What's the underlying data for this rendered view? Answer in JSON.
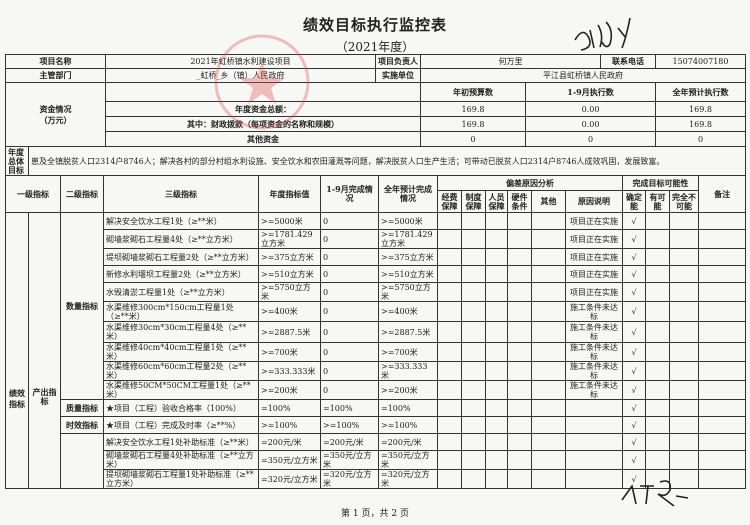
{
  "title": "绩效目标执行监控表",
  "subtitle": "（2021年度）",
  "project": {
    "name_label": "项目名称",
    "name": "2021年虹桥镇水利建设项目",
    "leader_label": "项目负责人",
    "leader": "何万里",
    "phone_label": "联系电话",
    "phone": "15074007180",
    "dept_label": "主管部门",
    "dept": "_虹桥_乡（镇）人民政府",
    "unit_label": "实施单位",
    "unit": "平江县虹桥镇人民政府"
  },
  "funds": {
    "label": "资金情况\n（万元）",
    "headers": [
      "年初预算数",
      "1-9月执行数",
      "全年预计执行数"
    ],
    "rows": [
      {
        "label": "年度资金总额：",
        "values": [
          "169.8",
          "0.00",
          "169.8"
        ]
      },
      {
        "label": "其中：财政拨款（每项资金的名称和规模）",
        "values": [
          "169.8",
          "0.00",
          "169.8"
        ]
      },
      {
        "label": "其他资金",
        "values": [
          "0",
          "0",
          "0"
        ]
      }
    ]
  },
  "goal": {
    "label": "年度总体目标",
    "text": "崽及全镇脱贫人口2314户8746人；解决各村的部分村组水利设施、安全饮水和农田灌溉等问题，解决脱贫人口生产生活；可带动已脱贫人口2314户8746人成效巩固，发展致富。"
  },
  "headers": {
    "level1": "一级指标",
    "level2": "二级指标",
    "level3": "三级指标",
    "target": "年度指标值",
    "actual": "1-9月完成情况",
    "forecast": "全年预计完成情况",
    "deviation": "偏差原因分析",
    "dev_cols": [
      "经费保障",
      "制度保障",
      "人员保障",
      "硬件条件",
      "其他",
      "原因说明"
    ],
    "possibility": "完成目标可能性",
    "poss_cols": [
      "确定能",
      "有可能",
      "完全不可能"
    ],
    "remark": "备注"
  },
  "level0": "绩效指标",
  "level1": "产出指标",
  "groups": [
    {
      "label": "数量指标",
      "span": 10
    },
    {
      "label": "质量指标",
      "span": 1
    },
    {
      "label": "时效指标",
      "span": 1
    },
    {
      "label": "",
      "span": 3
    }
  ],
  "rows": [
    {
      "name": "解决安全饮水工程1处（≥**米）",
      "target": ">=5000米",
      "actual": "0",
      "forecast": ">=5000米",
      "reason": "项目正在实施",
      "check": "√"
    },
    {
      "name": "砌墙浆砌石工程量4处（≥**立方米）",
      "target": ">=1781.429立方米",
      "actual": "0",
      "forecast": ">=1781.429立方米",
      "reason": "项目正在实施",
      "check": "√"
    },
    {
      "name": "堤坝砌墙浆砌石工程量2处（≥**立方米）",
      "target": ">=375立方米",
      "actual": "0",
      "forecast": ">=375立方米",
      "reason": "项目正在实施",
      "check": "√"
    },
    {
      "name": "新修水利堰坝工程量2处（≥**立方米）",
      "target": ">=510立方米",
      "actual": "0",
      "forecast": ">=510立方米",
      "reason": "项目正在实施",
      "check": "√"
    },
    {
      "name": "水毁清淤工程量1处（≥**立方米）",
      "target": ">=5750立方米",
      "actual": "0",
      "forecast": ">=5750立方米",
      "reason": "项目正在实施",
      "check": "√"
    },
    {
      "name": "水渠维修300cm*150cm工程量1处（≥**米）",
      "target": ">=400米",
      "actual": "0",
      "forecast": ">=400米",
      "reason": "施工条件未达标",
      "check": "√"
    },
    {
      "name": "水渠维修30cm*30cm工程量4处（≥**米）",
      "target": ">=2887.5米",
      "actual": "0",
      "forecast": ">=2887.5米",
      "reason": "施工条件未达标",
      "check": "√"
    },
    {
      "name": "水渠维修40cm*40cm工程量1处（≥**米）",
      "target": ">=700米",
      "actual": "0",
      "forecast": ">=700米",
      "reason": "施工条件未达标",
      "check": "√"
    },
    {
      "name": "水渠维修60cm*60cm工程量2处（≥**米）",
      "target": ">=333.333米",
      "actual": "0",
      "forecast": ">=333.333米",
      "reason": "施工条件未达标",
      "check": "√"
    },
    {
      "name": "水渠维修50CM*50CM工程量1处（≥**米）",
      "target": ">=200米",
      "actual": "0",
      "forecast": ">=200米",
      "reason": "施工条件未达标",
      "check": "√"
    },
    {
      "name": "★项目（工程）验收合格率（100%）",
      "target": "=100%",
      "actual": "=100%",
      "forecast": "=100%",
      "reason": "",
      "check": "√"
    },
    {
      "name": "★项目（工程）完成及时率（≥**%）",
      "target": ">=100%",
      "actual": ">=100%",
      "forecast": ">=100%",
      "reason": "",
      "check": "√"
    },
    {
      "name": "解决安全饮水工程1处补助标准（≥**米）",
      "target": "=200元/米",
      "actual": "=200元/米",
      "forecast": "=200元/米",
      "reason": "",
      "check": "√"
    },
    {
      "name": "砌墙浆砌石工程量4处补助标准（≥**立方米）",
      "target": "=350元/立方米",
      "actual": "=350元/立方米",
      "forecast": "=350元/立方米",
      "reason": "",
      "check": "√"
    },
    {
      "name": "提坝砌墙浆砌石工程量1处补助标准（≥**立方米）",
      "target": "=320元/立方米",
      "actual": "=320元/立方米",
      "forecast": "=320元/立方米",
      "reason": "",
      "check": "√"
    }
  ],
  "footer": "第 1 页，共 2 页",
  "colors": {
    "stamp": "#d9534f",
    "ink": "#222222"
  }
}
